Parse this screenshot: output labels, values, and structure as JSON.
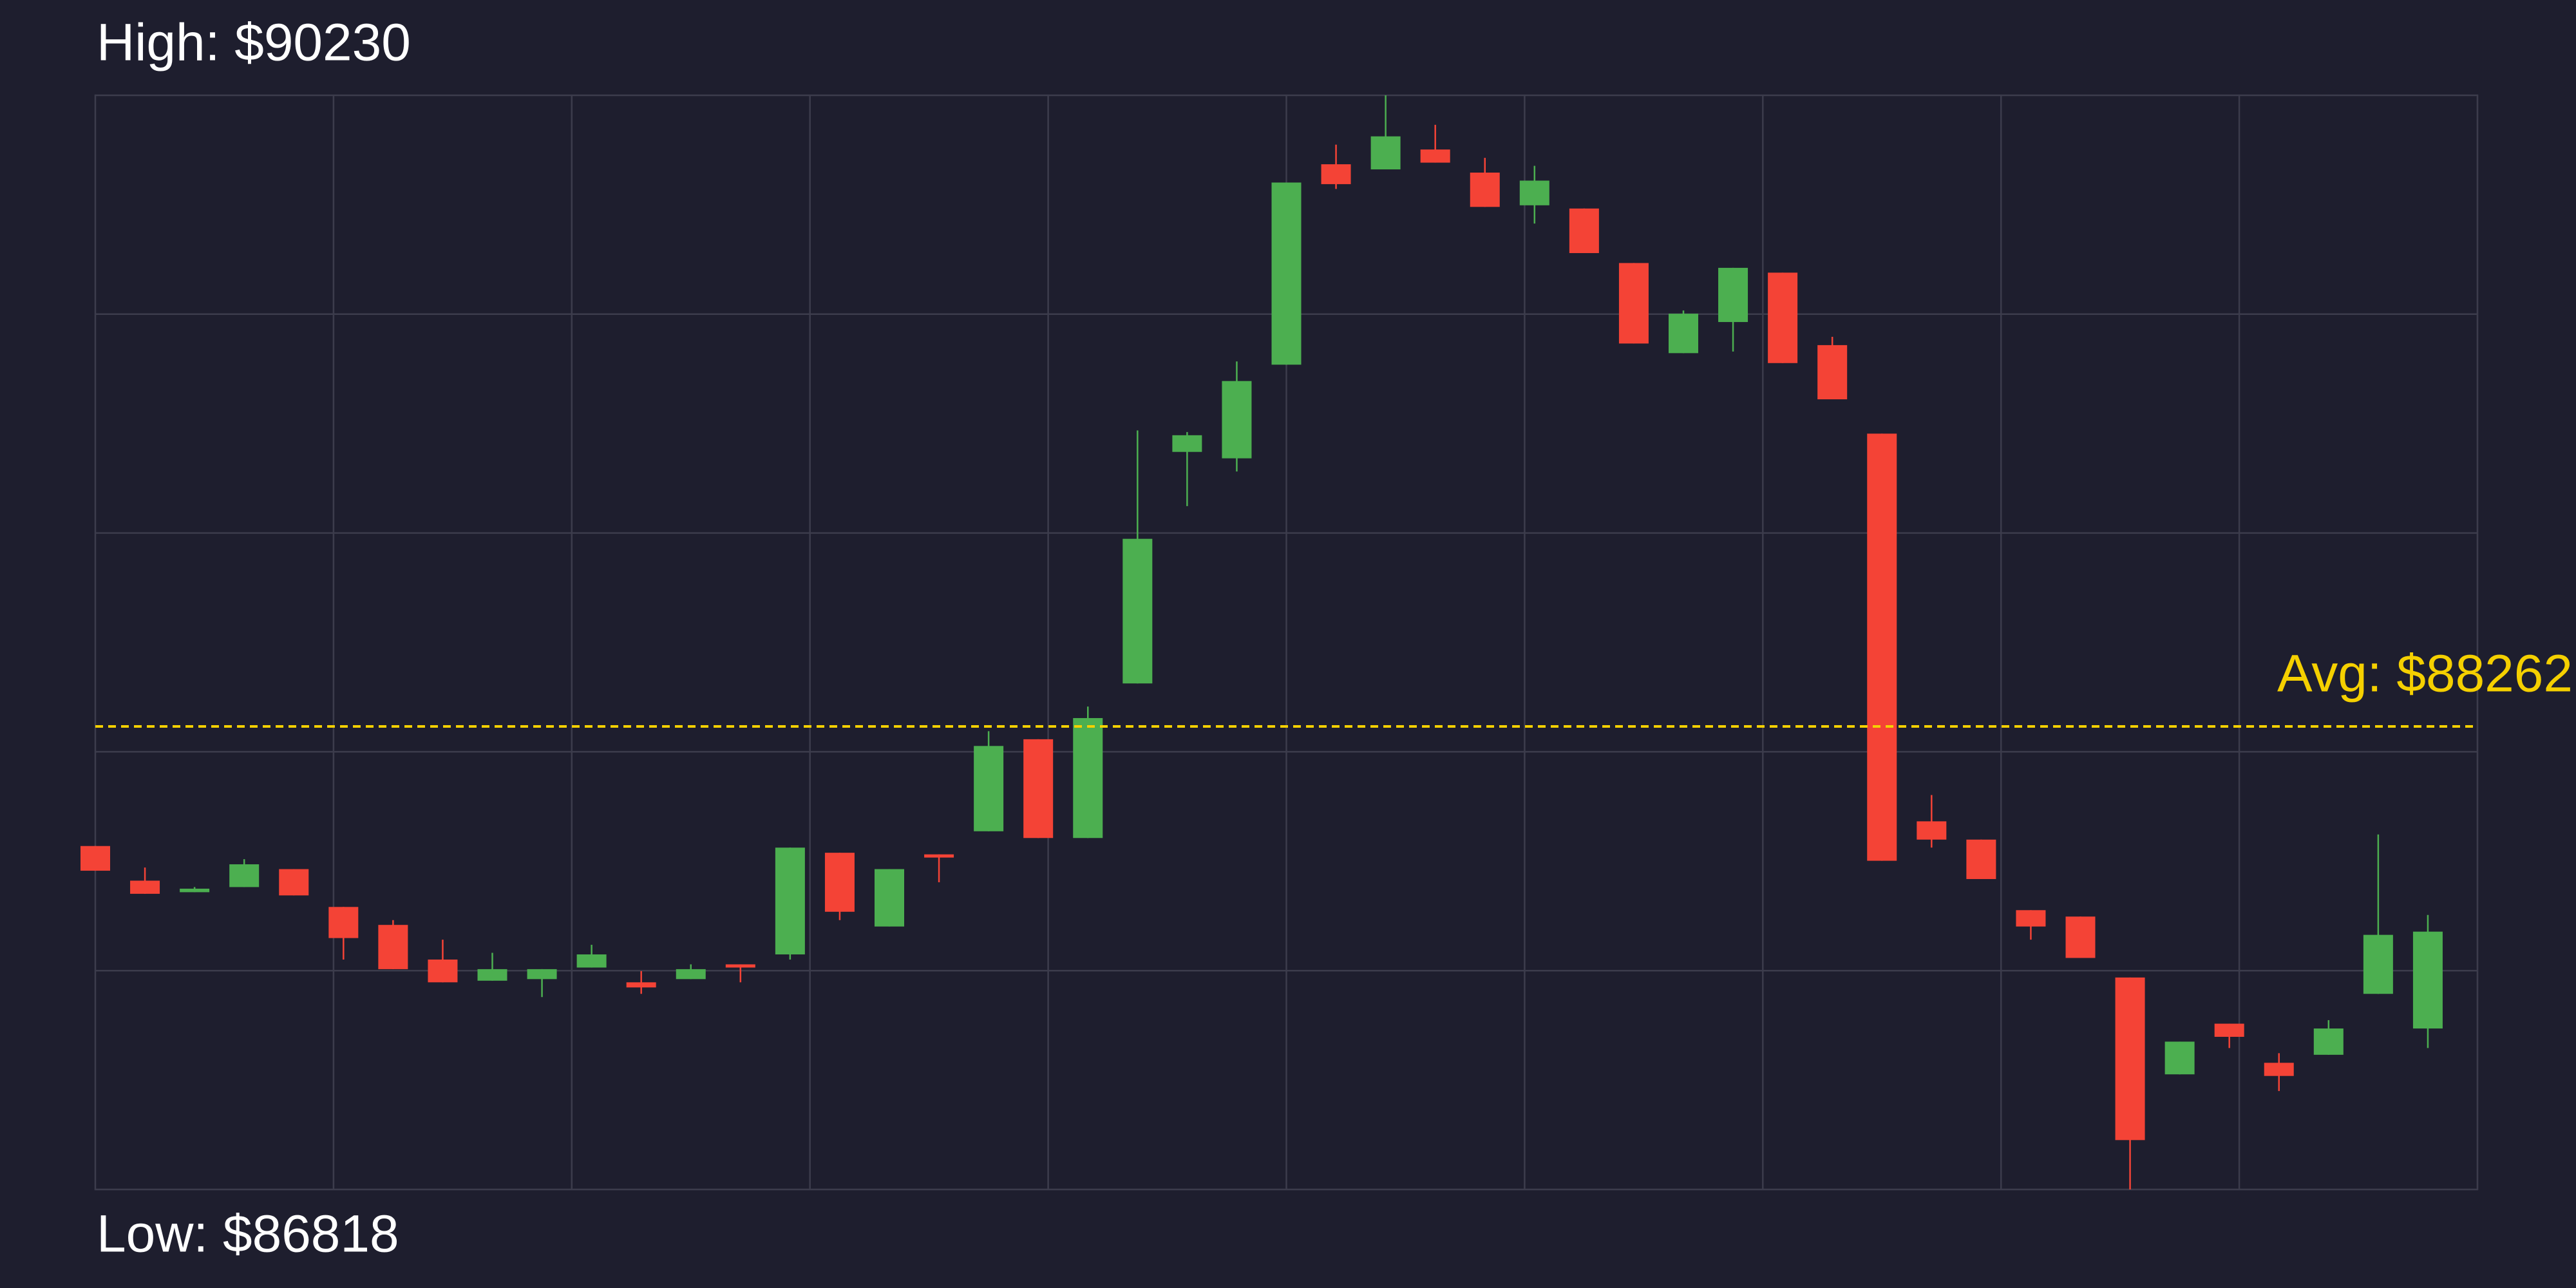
{
  "chart_data": {
    "type": "candlestick",
    "high_label": "High: $90230",
    "low_label": "Low: $86818",
    "avg_label": "Avg: $88262",
    "avg": 88262,
    "ylim": [
      86818,
      90230
    ],
    "grid": true,
    "up_color": "#4caf50",
    "down_color": "#f44336",
    "avg_color": "#f5d000",
    "open": [
      87889,
      87781,
      87745,
      87761,
      87817,
      87699,
      87643,
      87535,
      87469,
      87474,
      87510,
      87464,
      87474,
      87520,
      87551,
      87868,
      87638,
      87863,
      87935,
      88222,
      87914,
      88396,
      89118,
      89098,
      89390,
      90015,
      89999,
      90061,
      89989,
      89887,
      89877,
      89707,
      89426,
      89523,
      89677,
      89451,
      89175,
      87966,
      87909,
      87689,
      87669,
      87479,
      87177,
      87335,
      87213,
      87238,
      87428,
      87320
    ],
    "high": [
      87889,
      87822,
      87761,
      87848,
      87817,
      87699,
      87658,
      87597,
      87556,
      87505,
      87581,
      87499,
      87520,
      87520,
      87884,
      87868,
      87817,
      87863,
      88247,
      88222,
      88324,
      89185,
      89180,
      89400,
      89958,
      90076,
      90230,
      90138,
      90035,
      90010,
      89877,
      89707,
      89559,
      89692,
      89677,
      89477,
      89175,
      88048,
      87909,
      87689,
      87669,
      87479,
      87279,
      87335,
      87243,
      87346,
      87925,
      87674
    ],
    "low": [
      87812,
      87740,
      87745,
      87761,
      87735,
      87535,
      87505,
      87464,
      87469,
      87418,
      87510,
      87428,
      87474,
      87464,
      87535,
      87658,
      87638,
      87776,
      87935,
      87914,
      87914,
      88396,
      88949,
      89057,
      89390,
      89938,
      89999,
      90020,
      89882,
      89830,
      89738,
      89456,
      89426,
      89431,
      89395,
      89282,
      87843,
      87884,
      87786,
      87597,
      87540,
      86818,
      87177,
      87259,
      87125,
      87238,
      87428,
      87259
    ],
    "close": [
      87812,
      87740,
      87756,
      87832,
      87735,
      87602,
      87505,
      87464,
      87505,
      87505,
      87551,
      87448,
      87505,
      87510,
      87884,
      87684,
      87817,
      87853,
      88201,
      87914,
      88288,
      88847,
      89170,
      89339,
      89958,
      89953,
      90102,
      90020,
      89882,
      89964,
      89738,
      89456,
      89549,
      89692,
      89395,
      89282,
      87843,
      87909,
      87786,
      87638,
      87540,
      86972,
      87279,
      87294,
      87172,
      87320,
      87612,
      87622
    ]
  }
}
